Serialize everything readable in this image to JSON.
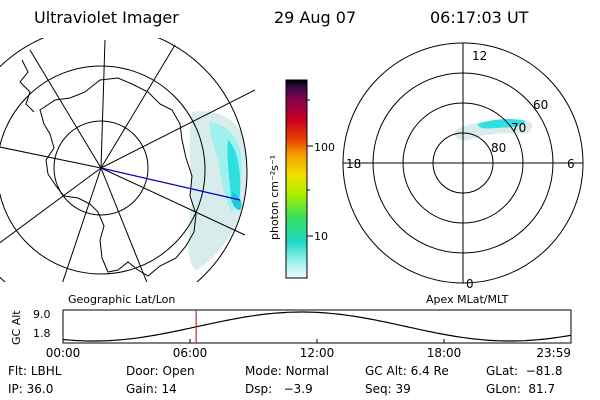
{
  "header": {
    "instrument": "Ultraviolet Imager",
    "date": "29 Aug 07",
    "time": "06:17:03 UT"
  },
  "geographic_panel": {
    "label": "Geographic Lat/Lon"
  },
  "colorbar": {
    "unit_label": "photon cm⁻²s⁻¹",
    "tick_labels": [
      "100",
      "10"
    ],
    "colors": [
      "#000000",
      "#3a0a4a",
      "#8a0050",
      "#c80020",
      "#e84000",
      "#f5a000",
      "#f0e000",
      "#a8f000",
      "#30e060",
      "#20d8c8",
      "#a0f0f0",
      "#f0f8f8"
    ]
  },
  "apex_panel": {
    "label": "Apex MLat/MLT",
    "mlt_labels": {
      "top": "12",
      "left": "18",
      "right": "6",
      "bottom": "0"
    },
    "lat_labels": [
      "60",
      "70",
      "80"
    ]
  },
  "altitude_plot": {
    "ylabel": "GC Alt",
    "y_ticks": [
      "9.0",
      "1.8"
    ],
    "x_ticks": [
      "00:00",
      "06:00",
      "12:00",
      "18:00",
      "23:59"
    ],
    "current_time_fraction": 0.262
  },
  "info": {
    "row1": [
      {
        "label": "Flt:",
        "value": "LBHL"
      },
      {
        "label": "Door:",
        "value": "Open"
      },
      {
        "label": "Mode:",
        "value": "Normal"
      },
      {
        "label": "GC Alt:",
        "value": "6.4 Re"
      },
      {
        "label": "GLat:",
        "value": "−81.8"
      }
    ],
    "row2": [
      {
        "label": "IP:",
        "value": "36.0"
      },
      {
        "label": "Gain:",
        "value": "14"
      },
      {
        "label": "Dsp:",
        "value": "  −3.9"
      },
      {
        "label": "Seq:",
        "value": "39"
      },
      {
        "label": "GLon:",
        "value": "81.7"
      }
    ]
  },
  "accent_colors": {
    "aurora": "#30e0e0",
    "aurora_faint": "#d8ecec",
    "track": "#0000c0",
    "time_marker": "#c00000"
  }
}
